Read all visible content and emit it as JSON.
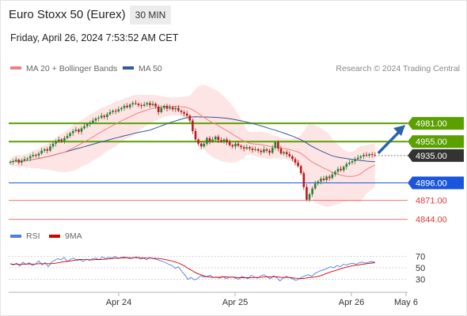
{
  "header": {
    "title": "Euro Stoxx 50 (Eurex)",
    "interval": "30 MIN",
    "datetime": "Friday, April 26, 2024 7:53:52 AM CET"
  },
  "legend": {
    "ma20": "MA 20 + Bollinger Bands",
    "ma50": "MA 50",
    "credit": "Research © 2024 Trading Central",
    "rsi": "RSI",
    "rsi_ma": "9MA"
  },
  "colors": {
    "up": "#2e7d32",
    "down": "#b71c1c",
    "ma20": "#f08080",
    "ma50": "#34599a",
    "band": "#fde0e0",
    "resistance": "#5aa000",
    "pivot": "#1a56db",
    "support": "#e53935",
    "last": "#333333",
    "arrow": "#2b63a8",
    "rsi": "#4f7ee0",
    "rsi_ma": "#d40000"
  },
  "chart_data": [
    {
      "type": "candlestick",
      "x_ticks": [
        "Apr 24",
        "Apr 25",
        "Apr 26",
        "May 6"
      ],
      "price_levels": [
        {
          "label": "4981.00",
          "value": 4981,
          "kind": "resistance"
        },
        {
          "label": "4955.00",
          "value": 4955,
          "kind": "resistance"
        },
        {
          "label": "4935.00",
          "value": 4935,
          "kind": "last"
        },
        {
          "label": "4896.00",
          "value": 4896,
          "kind": "pivot"
        },
        {
          "label": "4871.00",
          "value": 4871,
          "kind": "support"
        },
        {
          "label": "4844.00",
          "value": 4844,
          "kind": "support"
        }
      ],
      "closes": [
        4926,
        4927,
        4929,
        4925,
        4928,
        4930,
        4931,
        4934,
        4936,
        4935,
        4938,
        4942,
        4944,
        4942,
        4948,
        4952,
        4955,
        4958,
        4956,
        4960,
        4963,
        4967,
        4970,
        4972,
        4969,
        4974,
        4977,
        4980,
        4982,
        4985,
        4988,
        4989,
        4992,
        4990,
        4994,
        4997,
        4999,
        4998,
        5001,
        5003,
        5006,
        5004,
        5008,
        5010,
        5009,
        5007,
        5006,
        5008,
        5010,
        5007,
        5009,
        5005,
        4997,
        5003,
        5006,
        5002,
        5004,
        5001,
        5003,
        4999,
        4997,
        4995,
        4992,
        4985,
        4970,
        4958,
        4952,
        4948,
        4952,
        4960,
        4955,
        4958,
        4962,
        4957,
        4955,
        4958,
        4954,
        4950,
        4948,
        4952,
        4949,
        4947,
        4945,
        4947,
        4945,
        4943,
        4944,
        4942,
        4940,
        4944,
        4942,
        4939,
        4946,
        4954,
        4945,
        4938,
        4940,
        4937,
        4934,
        4930,
        4925,
        4920,
        4910,
        4890,
        4872,
        4880,
        4888,
        4895,
        4898,
        4902,
        4900,
        4905,
        4903,
        4908,
        4912,
        4916,
        4914,
        4919,
        4923,
        4925,
        4927,
        4930,
        4932,
        4934,
        4936,
        4935,
        4937,
        4936,
        4935
      ],
      "ylim": [
        4830,
        5050
      ],
      "note": "Bollinger band, MA20 and MA50 are derived from closes"
    },
    {
      "type": "line",
      "name": "RSI",
      "ticks": [
        70,
        50,
        30
      ],
      "ylim": [
        10,
        90
      ],
      "values": [
        57,
        55,
        58,
        53,
        60,
        56,
        59,
        54,
        57,
        62,
        55,
        59,
        52,
        60,
        63,
        66,
        64,
        68,
        61,
        65,
        67,
        63,
        64,
        61,
        65,
        63,
        66,
        67,
        64,
        69,
        66,
        68,
        67,
        70,
        66,
        68,
        69,
        67,
        66,
        68,
        69,
        65,
        67,
        64,
        68,
        66,
        65,
        63,
        61,
        59,
        56,
        54,
        49,
        52,
        44,
        38,
        30,
        33,
        29,
        31,
        36,
        34,
        35,
        37,
        33,
        34,
        32,
        35,
        31,
        33,
        34,
        32,
        30,
        35,
        33,
        31,
        37,
        34,
        32,
        36,
        38,
        34,
        31,
        36,
        33,
        27,
        32,
        35,
        33,
        31,
        28,
        30,
        34,
        36,
        38,
        35,
        40,
        43,
        45,
        47,
        49,
        52,
        50,
        54,
        52,
        56,
        55,
        57,
        58,
        56,
        59,
        60,
        58,
        60,
        61,
        60
      ]
    }
  ]
}
